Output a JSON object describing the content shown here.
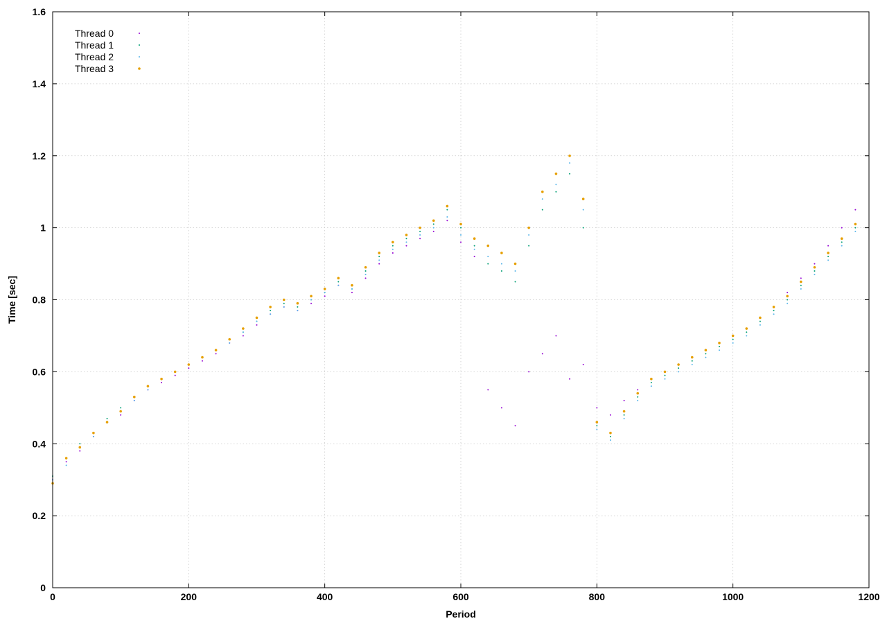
{
  "chart_data": {
    "type": "scatter",
    "title": "",
    "xlabel": "Period",
    "ylabel": "Time [sec]",
    "xlim": [
      0,
      1200
    ],
    "ylim": [
      0,
      1.6
    ],
    "x_ticks": [
      0,
      200,
      400,
      600,
      800,
      1000,
      1200
    ],
    "x_tick_labels": [
      "0",
      "200",
      "400",
      "600",
      "800",
      "1000",
      "1200"
    ],
    "y_ticks": [
      0,
      0.2,
      0.4,
      0.6,
      0.8,
      1.0,
      1.2,
      1.4,
      1.6
    ],
    "y_tick_labels": [
      "0",
      "0.2",
      "0.4",
      "0.6",
      "0.8",
      "1",
      "1.2",
      "1.4",
      "1.6"
    ],
    "grid": true,
    "legend_position": "top-left",
    "series": [
      {
        "name": "Thread 0",
        "color": "#9400d3",
        "x": [
          0,
          20,
          40,
          60,
          80,
          100,
          120,
          140,
          160,
          180,
          200,
          220,
          240,
          260,
          280,
          300,
          320,
          340,
          360,
          380,
          400,
          420,
          440,
          460,
          480,
          500,
          520,
          540,
          560,
          580,
          600,
          620,
          640,
          660,
          680,
          700,
          720,
          740,
          760,
          780,
          800,
          820,
          840,
          860,
          880,
          900,
          920,
          940,
          960,
          980,
          1000,
          1020,
          1040,
          1060,
          1080,
          1100,
          1120,
          1140,
          1160,
          1180
        ],
        "y": [
          0.3,
          0.35,
          0.38,
          0.42,
          0.46,
          0.48,
          0.52,
          0.55,
          0.57,
          0.59,
          0.61,
          0.63,
          0.65,
          0.68,
          0.7,
          0.73,
          0.76,
          0.78,
          0.77,
          0.79,
          0.81,
          0.84,
          0.82,
          0.86,
          0.9,
          0.93,
          0.95,
          0.97,
          0.99,
          1.02,
          0.96,
          0.92,
          0.55,
          0.5,
          0.45,
          0.6,
          0.65,
          0.7,
          0.58,
          0.62,
          0.5,
          0.48,
          0.52,
          0.55,
          0.58,
          0.6,
          0.62,
          0.64,
          0.66,
          0.68,
          0.7,
          0.72,
          0.75,
          0.78,
          0.82,
          0.86,
          0.9,
          0.95,
          1.0,
          1.05
        ]
      },
      {
        "name": "Thread 1",
        "color": "#009e73",
        "x": [
          0,
          20,
          40,
          60,
          80,
          100,
          120,
          140,
          160,
          180,
          200,
          220,
          240,
          260,
          280,
          300,
          320,
          340,
          360,
          380,
          400,
          420,
          440,
          460,
          480,
          500,
          520,
          540,
          560,
          580,
          600,
          620,
          640,
          660,
          680,
          700,
          720,
          740,
          760,
          780,
          800,
          820,
          840,
          860,
          880,
          900,
          920,
          940,
          960,
          980,
          1000,
          1020,
          1040,
          1060,
          1080,
          1100,
          1120,
          1140,
          1160,
          1180
        ],
        "y": [
          0.31,
          0.36,
          0.4,
          0.43,
          0.47,
          0.5,
          0.53,
          0.56,
          0.58,
          0.6,
          0.62,
          0.64,
          0.66,
          0.69,
          0.71,
          0.74,
          0.77,
          0.79,
          0.78,
          0.8,
          0.82,
          0.85,
          0.83,
          0.88,
          0.92,
          0.95,
          0.97,
          0.99,
          1.01,
          1.05,
          1.0,
          0.95,
          0.9,
          0.88,
          0.85,
          0.95,
          1.05,
          1.1,
          1.15,
          1.0,
          0.45,
          0.42,
          0.48,
          0.53,
          0.57,
          0.59,
          0.61,
          0.63,
          0.65,
          0.67,
          0.69,
          0.71,
          0.74,
          0.77,
          0.8,
          0.84,
          0.88,
          0.92,
          0.96,
          1.0
        ]
      },
      {
        "name": "Thread 2",
        "color": "#56b4e9",
        "x": [
          0,
          20,
          40,
          60,
          80,
          100,
          120,
          140,
          160,
          180,
          200,
          220,
          240,
          260,
          280,
          300,
          320,
          340,
          360,
          380,
          400,
          420,
          440,
          460,
          480,
          500,
          520,
          540,
          560,
          580,
          600,
          620,
          640,
          660,
          680,
          700,
          720,
          740,
          760,
          780,
          800,
          820,
          840,
          860,
          880,
          900,
          920,
          940,
          960,
          980,
          1000,
          1020,
          1040,
          1060,
          1080,
          1100,
          1120,
          1140,
          1160,
          1180
        ],
        "y": [
          0.3,
          0.34,
          0.39,
          0.42,
          0.46,
          0.49,
          0.52,
          0.55,
          0.58,
          0.6,
          0.62,
          0.64,
          0.66,
          0.68,
          0.71,
          0.74,
          0.76,
          0.78,
          0.77,
          0.8,
          0.82,
          0.84,
          0.83,
          0.87,
          0.91,
          0.94,
          0.96,
          0.98,
          1.0,
          1.03,
          0.98,
          0.94,
          0.92,
          0.9,
          0.88,
          0.98,
          1.08,
          1.12,
          1.18,
          1.05,
          0.44,
          0.41,
          0.47,
          0.52,
          0.56,
          0.58,
          0.6,
          0.62,
          0.64,
          0.66,
          0.68,
          0.7,
          0.73,
          0.76,
          0.79,
          0.83,
          0.87,
          0.91,
          0.95,
          0.99
        ]
      },
      {
        "name": "Thread 3",
        "color": "#e69f00",
        "x": [
          0,
          20,
          40,
          60,
          80,
          100,
          120,
          140,
          160,
          180,
          200,
          220,
          240,
          260,
          280,
          300,
          320,
          340,
          360,
          380,
          400,
          420,
          440,
          460,
          480,
          500,
          520,
          540,
          560,
          580,
          600,
          620,
          640,
          660,
          680,
          700,
          720,
          740,
          760,
          780,
          800,
          820,
          840,
          860,
          880,
          900,
          920,
          940,
          960,
          980,
          1000,
          1020,
          1040,
          1060,
          1080,
          1100,
          1120,
          1140,
          1160,
          1180
        ],
        "y": [
          0.29,
          0.36,
          0.39,
          0.43,
          0.46,
          0.49,
          0.53,
          0.56,
          0.58,
          0.6,
          0.62,
          0.64,
          0.66,
          0.69,
          0.72,
          0.75,
          0.78,
          0.8,
          0.79,
          0.81,
          0.83,
          0.86,
          0.84,
          0.89,
          0.93,
          0.96,
          0.98,
          1.0,
          1.02,
          1.06,
          1.01,
          0.97,
          0.95,
          0.93,
          0.9,
          1.0,
          1.1,
          1.15,
          1.2,
          1.08,
          0.46,
          0.43,
          0.49,
          0.54,
          0.58,
          0.6,
          0.62,
          0.64,
          0.66,
          0.68,
          0.7,
          0.72,
          0.75,
          0.78,
          0.81,
          0.85,
          0.89,
          0.93,
          0.97,
          1.01
        ]
      }
    ]
  }
}
